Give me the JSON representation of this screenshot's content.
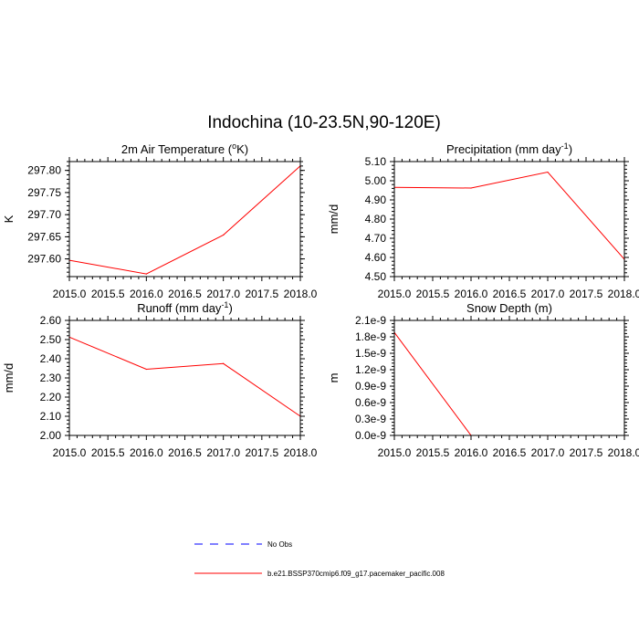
{
  "main_title": "Indochina (10-23.5N,90-120E)",
  "chart_data": [
    {
      "type": "line",
      "title": "2m Air Temperature (",
      "title_sup": "o",
      "title_after": "K)",
      "xlabel": "",
      "ylabel": "K",
      "xlim": [
        2015.0,
        2018.0
      ],
      "ylim": [
        297.56,
        297.82
      ],
      "xticks": [
        "2015.0",
        "2015.5",
        "2016.0",
        "2016.5",
        "2017.0",
        "2017.5",
        "2018.0"
      ],
      "yticks": [
        "297.60",
        "297.65",
        "297.70",
        "297.75",
        "297.80"
      ],
      "x": [
        2015.0,
        2016.0,
        2017.0,
        2018.0
      ],
      "series": [
        {
          "values": [
            297.597,
            297.566,
            297.654,
            297.81
          ],
          "color": "#ff0000"
        }
      ]
    },
    {
      "type": "line",
      "title": "Precipitation (mm day",
      "title_sup": "-1",
      "title_after": ")",
      "xlabel": "",
      "ylabel": "mm/d",
      "xlim": [
        2015.0,
        2018.0
      ],
      "ylim": [
        4.5,
        5.1
      ],
      "xticks": [
        "2015.0",
        "2015.5",
        "2016.0",
        "2016.5",
        "2017.0",
        "2017.5",
        "2018.0"
      ],
      "yticks": [
        "4.50",
        "4.60",
        "4.70",
        "4.80",
        "4.90",
        "5.00",
        "5.10"
      ],
      "x": [
        2015.0,
        2016.0,
        2017.0,
        2018.0
      ],
      "series": [
        {
          "values": [
            4.965,
            4.962,
            5.045,
            4.59
          ],
          "color": "#ff0000"
        }
      ]
    },
    {
      "type": "line",
      "title": "Runoff (mm day",
      "title_sup": "-1",
      "title_after": ")",
      "xlabel": "",
      "ylabel": "mm/d",
      "xlim": [
        2015.0,
        2018.0
      ],
      "ylim": [
        2.0,
        2.6
      ],
      "xticks": [
        "2015.0",
        "2015.5",
        "2016.0",
        "2016.5",
        "2017.0",
        "2017.5",
        "2018.0"
      ],
      "yticks": [
        "2.00",
        "2.10",
        "2.20",
        "2.30",
        "2.40",
        "2.50",
        "2.60"
      ],
      "x": [
        2015.0,
        2016.0,
        2017.0,
        2018.0
      ],
      "series": [
        {
          "values": [
            2.513,
            2.345,
            2.375,
            2.1
          ],
          "color": "#ff0000"
        }
      ]
    },
    {
      "type": "line",
      "title": "Snow Depth (m)",
      "title_sup": "",
      "title_after": "",
      "xlabel": "",
      "ylabel": "m",
      "xlim": [
        2015.0,
        2018.0
      ],
      "ylim": [
        0.0,
        2.1e-09
      ],
      "xticks": [
        "2015.0",
        "2015.5",
        "2016.0",
        "2016.5",
        "2017.0",
        "2017.5",
        "2018.0"
      ],
      "yticks": [
        "0.0e-9",
        "0.3e-9",
        "0.6e-9",
        "0.9e-9",
        "1.2e-9",
        "1.5e-9",
        "1.8e-9",
        "2.1e-9"
      ],
      "x": [
        2015.0,
        2016.0,
        2017.0,
        2018.0
      ],
      "series": [
        {
          "values": [
            1.88e-09,
            0.0,
            0.0,
            0.0
          ],
          "color": "#ff0000"
        }
      ]
    }
  ],
  "legend": [
    {
      "label": "No Obs",
      "color": "#0000ff",
      "style": "dashed"
    },
    {
      "label": "b.e21.BSSP370cmip6.f09_g17.pacemaker_pacific.008",
      "color": "#ff0000",
      "style": "solid"
    }
  ]
}
